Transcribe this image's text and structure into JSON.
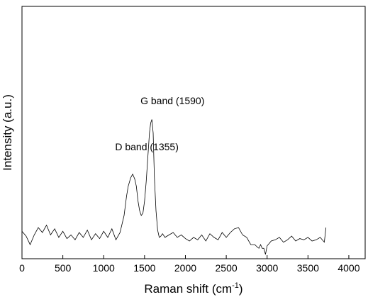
{
  "chart_data": {
    "type": "line",
    "title": "",
    "xlabel_main": "Raman shift (cm",
    "xlabel_sup": "-1",
    "xlabel_end": ")",
    "ylabel": "Intensity (a.u.)",
    "xlim": [
      0,
      4200
    ],
    "ylim": [
      0,
      1
    ],
    "x_ticks": [
      0,
      500,
      1000,
      1500,
      2000,
      2500,
      3000,
      3500,
      4000
    ],
    "y_ticks_visible": false,
    "grid": false,
    "legend": "none",
    "annotations": [
      {
        "text": "D band (1355)",
        "x": 1140,
        "y": 0.408
      },
      {
        "text": "G band (1590)",
        "x": 1450,
        "y": 0.598
      }
    ],
    "series": [
      {
        "color": "#000000",
        "x": [
          0,
          50,
          100,
          150,
          200,
          250,
          300,
          350,
          400,
          450,
          500,
          550,
          600,
          650,
          700,
          750,
          800,
          850,
          900,
          950,
          1000,
          1050,
          1100,
          1150,
          1200,
          1250,
          1280,
          1300,
          1330,
          1355,
          1380,
          1400,
          1420,
          1440,
          1460,
          1480,
          1500,
          1520,
          1540,
          1560,
          1575,
          1590,
          1605,
          1620,
          1640,
          1660,
          1680,
          1700,
          1720,
          1750,
          1800,
          1850,
          1900,
          1950,
          2000,
          2050,
          2100,
          2150,
          2200,
          2250,
          2300,
          2350,
          2400,
          2450,
          2500,
          2550,
          2600,
          2650,
          2700,
          2750,
          2800,
          2850,
          2880,
          2900,
          2920,
          2940,
          2960,
          2980,
          3000,
          3050,
          3100,
          3150,
          3200,
          3250,
          3300,
          3350,
          3400,
          3450,
          3500,
          3550,
          3600,
          3650,
          3700,
          3720
        ],
        "y": [
          0.075,
          0.055,
          0.02,
          0.06,
          0.09,
          0.07,
          0.1,
          0.06,
          0.085,
          0.05,
          0.075,
          0.045,
          0.06,
          0.04,
          0.07,
          0.05,
          0.08,
          0.04,
          0.065,
          0.045,
          0.075,
          0.05,
          0.085,
          0.04,
          0.07,
          0.14,
          0.22,
          0.26,
          0.295,
          0.31,
          0.29,
          0.26,
          0.2,
          0.16,
          0.14,
          0.15,
          0.2,
          0.28,
          0.38,
          0.48,
          0.52,
          0.535,
          0.48,
          0.3,
          0.16,
          0.08,
          0.05,
          0.055,
          0.065,
          0.05,
          0.06,
          0.07,
          0.05,
          0.06,
          0.045,
          0.035,
          0.05,
          0.04,
          0.06,
          0.035,
          0.065,
          0.05,
          0.04,
          0.07,
          0.05,
          0.07,
          0.085,
          0.09,
          0.06,
          0.05,
          0.02,
          0.02,
          0.01,
          0.005,
          0.02,
          0.005,
          0.005,
          -0.02,
          0.015,
          0.035,
          0.04,
          0.05,
          0.03,
          0.04,
          0.055,
          0.035,
          0.045,
          0.04,
          0.05,
          0.035,
          0.04,
          0.05,
          0.03,
          0.09
        ]
      }
    ]
  }
}
